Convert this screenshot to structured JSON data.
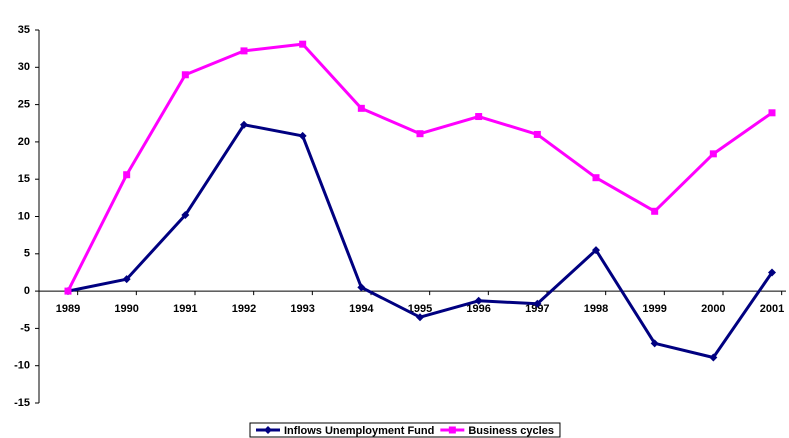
{
  "chart_data": {
    "type": "line",
    "categories": [
      "1989",
      "1990",
      "1991",
      "1992",
      "1993",
      "1994",
      "1995",
      "1996",
      "1997",
      "1998",
      "1999",
      "2000",
      "2001"
    ],
    "series": [
      {
        "name": "Inflows Unemployment Fund",
        "color": "#000080",
        "marker": "diamond",
        "values": [
          0,
          1.6,
          10.2,
          22.3,
          20.8,
          0.5,
          -3.5,
          -1.3,
          -1.7,
          5.5,
          -7,
          -8.9,
          2.5
        ]
      },
      {
        "name": "Business cycles",
        "color": "#ff00ff",
        "marker": "square",
        "values": [
          0,
          15.6,
          29,
          32.2,
          33.1,
          24.5,
          21.1,
          23.4,
          21,
          15.2,
          10.7,
          18.4,
          23.9
        ]
      }
    ],
    "ylim": [
      -15,
      35
    ],
    "yticks": [
      -15,
      -10,
      -5,
      0,
      5,
      10,
      15,
      20,
      25,
      30,
      35
    ],
    "grid": false,
    "legend": "bottom"
  }
}
